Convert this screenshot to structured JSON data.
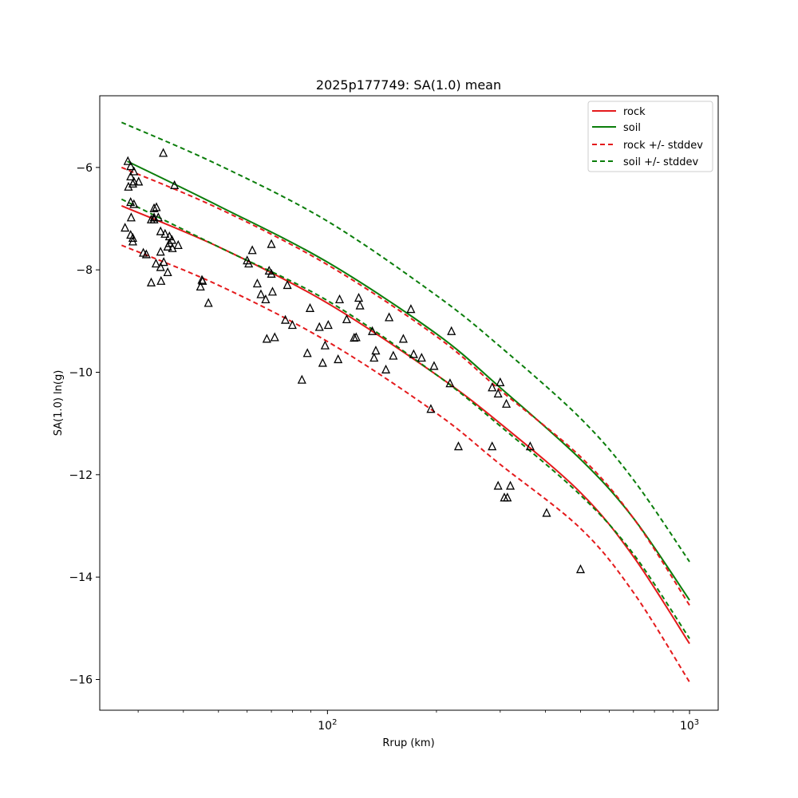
{
  "chart_data": {
    "type": "scatter",
    "title": "2025p177749: SA(1.0) mean",
    "xlabel": "Rrup (km)",
    "ylabel": "SA(1.0) ln(g)",
    "x_scale": "log",
    "xlim": [
      23.5,
      1200
    ],
    "ylim": [
      -16.6,
      -4.6
    ],
    "grid": false,
    "legend_position": "top-right",
    "y_ticks": [
      -6,
      -8,
      -10,
      -12,
      -14,
      -16
    ],
    "y_tick_labels": [
      "−6",
      "−8",
      "−10",
      "−12",
      "−14",
      "−16"
    ],
    "x_ticks": [
      {
        "value": 100,
        "base": "10",
        "exp": "2"
      },
      {
        "value": 1000,
        "base": "10",
        "exp": "3"
      }
    ],
    "x_minor_ticks": [
      30,
      40,
      50,
      60,
      70,
      80,
      90,
      200,
      300,
      400,
      500,
      600,
      700,
      800,
      900
    ],
    "colors": {
      "rock": "#e41a1c",
      "soil": "#0a7d0a",
      "marker": "#000000"
    },
    "series": [
      {
        "name": "rock",
        "style": "solid",
        "color_key": "rock",
        "points": [
          [
            27,
            -6.75
          ],
          [
            50,
            -7.55
          ],
          [
            100,
            -8.65
          ],
          [
            200,
            -10.05
          ],
          [
            300,
            -11.0
          ],
          [
            500,
            -12.35
          ],
          [
            700,
            -13.6
          ],
          [
            1000,
            -15.3
          ]
        ]
      },
      {
        "name": "soil",
        "style": "solid",
        "color_key": "soil",
        "points": [
          [
            28,
            -5.88
          ],
          [
            50,
            -6.75
          ],
          [
            100,
            -7.85
          ],
          [
            200,
            -9.25
          ],
          [
            300,
            -10.3
          ],
          [
            500,
            -11.7
          ],
          [
            700,
            -12.85
          ],
          [
            1000,
            -14.45
          ]
        ]
      },
      {
        "name": "rock +/- stddev",
        "style": "dashed",
        "color_key": "rock",
        "segments": [
          [
            [
              27,
              -6.0
            ],
            [
              50,
              -6.8
            ],
            [
              100,
              -7.9
            ],
            [
              200,
              -9.3
            ],
            [
              300,
              -10.35
            ],
            [
              500,
              -11.65
            ],
            [
              700,
              -12.85
            ],
            [
              1000,
              -14.55
            ]
          ],
          [
            [
              27,
              -7.52
            ],
            [
              50,
              -8.3
            ],
            [
              100,
              -9.4
            ],
            [
              200,
              -10.8
            ],
            [
              300,
              -11.8
            ],
            [
              500,
              -13.05
            ],
            [
              700,
              -14.3
            ],
            [
              1000,
              -16.05
            ]
          ]
        ]
      },
      {
        "name": "soil +/- stddev",
        "style": "dashed",
        "color_key": "soil",
        "segments": [
          [
            [
              27,
              -5.12
            ],
            [
              50,
              -5.95
            ],
            [
              100,
              -7.05
            ],
            [
              200,
              -8.5
            ],
            [
              300,
              -9.5
            ],
            [
              500,
              -10.9
            ],
            [
              700,
              -12.1
            ],
            [
              1000,
              -13.7
            ]
          ],
          [
            [
              27,
              -6.62
            ],
            [
              50,
              -7.55
            ],
            [
              100,
              -8.6
            ],
            [
              200,
              -10.05
            ],
            [
              300,
              -11.05
            ],
            [
              500,
              -12.4
            ],
            [
              700,
              -13.55
            ],
            [
              1000,
              -15.2
            ]
          ]
        ]
      }
    ],
    "observations": [
      [
        28.1,
        -5.88
      ],
      [
        28.6,
        -5.98
      ],
      [
        29.2,
        -6.08
      ],
      [
        28.6,
        -6.18
      ],
      [
        29.2,
        -6.28
      ],
      [
        30.1,
        -6.28
      ],
      [
        29.0,
        -6.32
      ],
      [
        28.2,
        -6.38
      ],
      [
        28.6,
        -6.68
      ],
      [
        29.2,
        -6.72
      ],
      [
        28.7,
        -6.98
      ],
      [
        28.6,
        -7.32
      ],
      [
        29.0,
        -7.38
      ],
      [
        29.0,
        -7.45
      ],
      [
        27.6,
        -7.18
      ],
      [
        31.0,
        -7.67
      ],
      [
        31.6,
        -7.7
      ],
      [
        33.2,
        -6.98
      ],
      [
        32.6,
        -7.02
      ],
      [
        33.2,
        -7.02
      ],
      [
        34.1,
        -6.98
      ],
      [
        33.2,
        -6.8
      ],
      [
        33.7,
        -6.78
      ],
      [
        35.2,
        -5.72
      ],
      [
        37.8,
        -6.35
      ],
      [
        34.6,
        -7.25
      ],
      [
        35.6,
        -7.3
      ],
      [
        36.6,
        -7.35
      ],
      [
        36.2,
        -7.55
      ],
      [
        36.6,
        -7.48
      ],
      [
        37.2,
        -7.42
      ],
      [
        37.3,
        -7.58
      ],
      [
        38.7,
        -7.52
      ],
      [
        34.6,
        -7.65
      ],
      [
        33.6,
        -7.88
      ],
      [
        34.6,
        -7.95
      ],
      [
        35.3,
        -7.85
      ],
      [
        34.7,
        -8.22
      ],
      [
        32.6,
        -8.25
      ],
      [
        36.2,
        -8.05
      ],
      [
        45.0,
        -8.2
      ],
      [
        45.2,
        -8.22
      ],
      [
        44.6,
        -8.33
      ],
      [
        46.9,
        -8.65
      ],
      [
        62.0,
        -7.62
      ],
      [
        60.0,
        -7.82
      ],
      [
        60.6,
        -7.88
      ],
      [
        70.0,
        -7.5
      ],
      [
        69.0,
        -8.02
      ],
      [
        70.0,
        -8.08
      ],
      [
        64.0,
        -8.27
      ],
      [
        65.5,
        -8.48
      ],
      [
        67.5,
        -8.58
      ],
      [
        70.5,
        -8.43
      ],
      [
        77.5,
        -8.3
      ],
      [
        76.5,
        -8.98
      ],
      [
        80.0,
        -9.08
      ],
      [
        68.0,
        -9.35
      ],
      [
        71.5,
        -9.32
      ],
      [
        85.0,
        -10.15
      ],
      [
        88.0,
        -9.63
      ],
      [
        89.5,
        -8.75
      ],
      [
        95.0,
        -9.12
      ],
      [
        100.5,
        -9.08
      ],
      [
        98.5,
        -9.48
      ],
      [
        97.0,
        -9.82
      ],
      [
        107.0,
        -9.75
      ],
      [
        108.0,
        -8.58
      ],
      [
        113.0,
        -8.97
      ],
      [
        118.5,
        -9.33
      ],
      [
        120.0,
        -9.32
      ],
      [
        122.0,
        -8.55
      ],
      [
        123.0,
        -8.7
      ],
      [
        133.0,
        -9.2
      ],
      [
        136.0,
        -9.58
      ],
      [
        134.5,
        -9.72
      ],
      [
        145.0,
        -9.95
      ],
      [
        148.0,
        -8.93
      ],
      [
        152.0,
        -9.68
      ],
      [
        162.0,
        -9.35
      ],
      [
        170.0,
        -8.77
      ],
      [
        173.0,
        -9.65
      ],
      [
        182.0,
        -9.72
      ],
      [
        197.0,
        -9.88
      ],
      [
        193.0,
        -10.72
      ],
      [
        220.0,
        -9.2
      ],
      [
        218.0,
        -10.22
      ],
      [
        230.0,
        -11.45
      ],
      [
        285.0,
        -10.3
      ],
      [
        285.0,
        -11.45
      ],
      [
        300.0,
        -10.2
      ],
      [
        296.0,
        -10.42
      ],
      [
        312.0,
        -10.62
      ],
      [
        296.0,
        -12.22
      ],
      [
        320.0,
        -12.22
      ],
      [
        308.0,
        -12.45
      ],
      [
        314.0,
        -12.45
      ],
      [
        363.0,
        -11.45
      ],
      [
        403.0,
        -12.75
      ],
      [
        500.0,
        -13.85
      ]
    ]
  }
}
